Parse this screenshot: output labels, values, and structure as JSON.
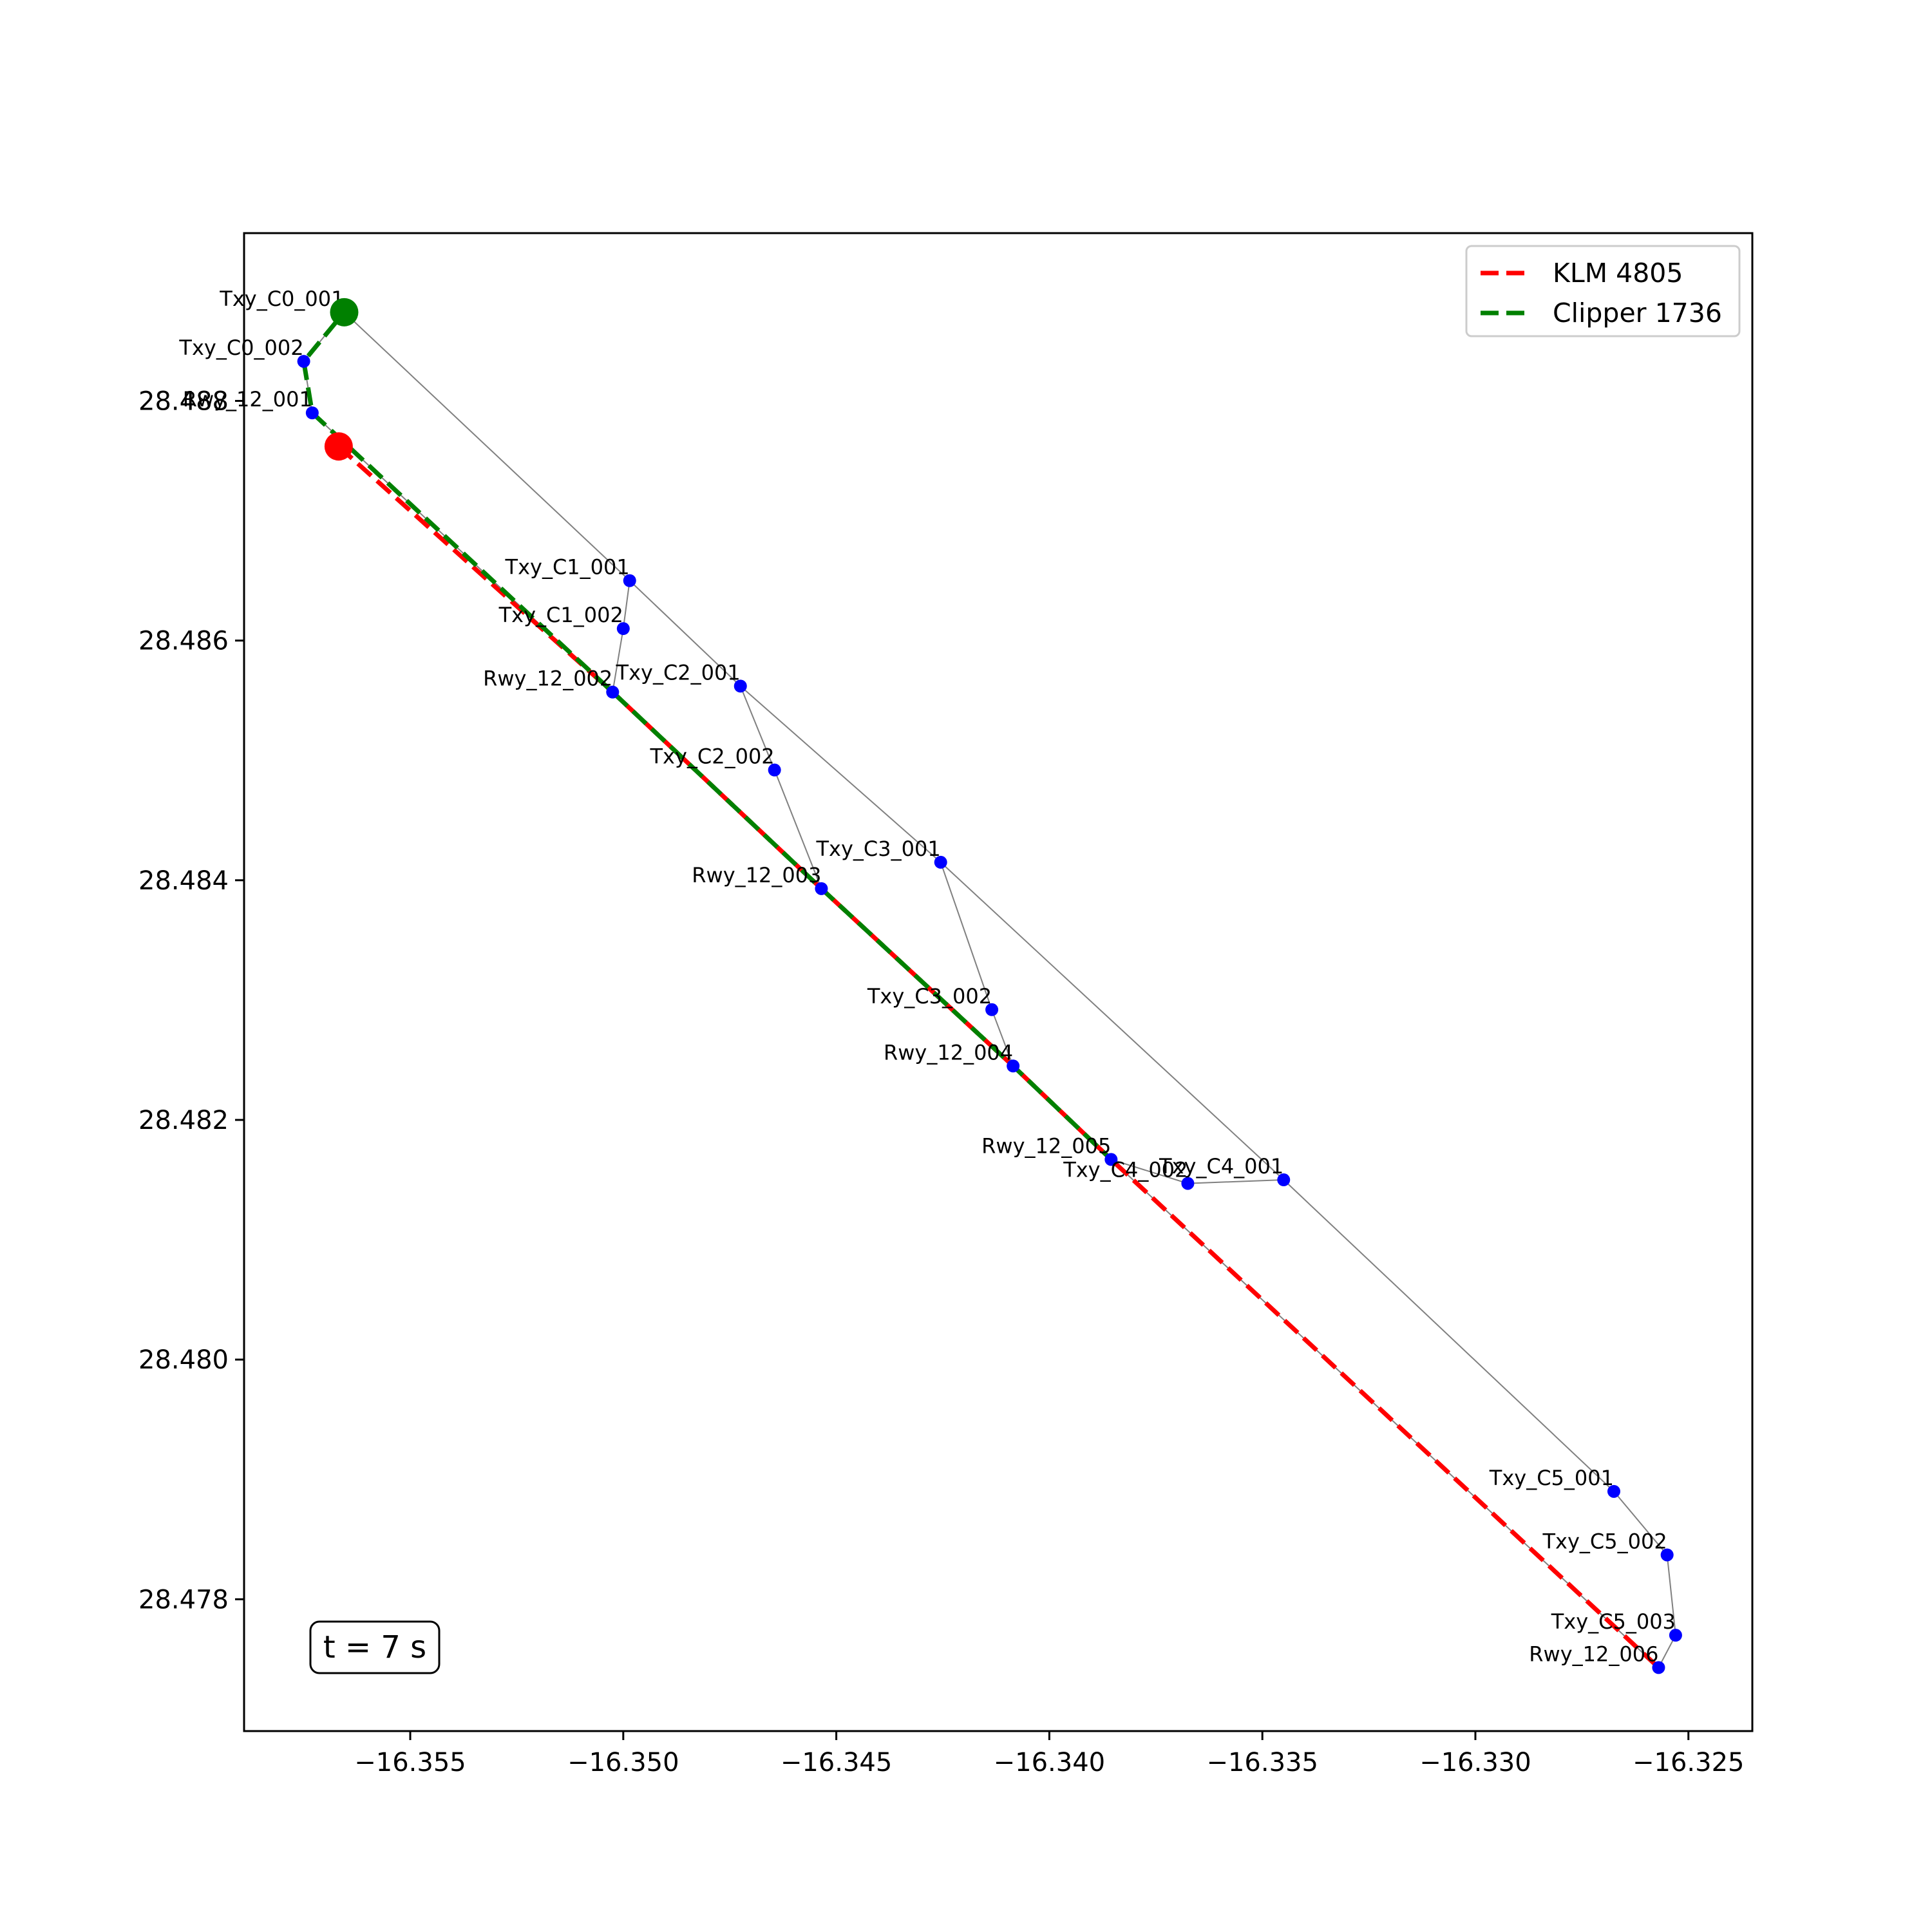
{
  "chart_data": {
    "type": "line",
    "title": "",
    "xlabel": "",
    "ylabel": "",
    "xlim": [
      -16.3589,
      -16.3235
    ],
    "ylim": [
      28.4769,
      28.4894
    ],
    "x_ticks": [
      {
        "value": -16.355,
        "label": "−16.355"
      },
      {
        "value": -16.35,
        "label": "−16.350"
      },
      {
        "value": -16.345,
        "label": "−16.345"
      },
      {
        "value": -16.34,
        "label": "−16.340"
      },
      {
        "value": -16.335,
        "label": "−16.335"
      },
      {
        "value": -16.33,
        "label": "−16.330"
      },
      {
        "value": -16.325,
        "label": "−16.325"
      }
    ],
    "y_ticks": [
      {
        "value": 28.478,
        "label": "28.478"
      },
      {
        "value": 28.48,
        "label": "28.480"
      },
      {
        "value": 28.482,
        "label": "28.482"
      },
      {
        "value": 28.484,
        "label": "28.484"
      },
      {
        "value": 28.486,
        "label": "28.486"
      },
      {
        "value": 28.488,
        "label": "28.488"
      }
    ],
    "nodes": [
      {
        "id": "Txy_C0_001",
        "label": "Txy_C0_001",
        "x": -16.35655,
        "y": 28.48874
      },
      {
        "id": "Txy_C0_002",
        "label": "Txy_C0_002",
        "x": -16.3575,
        "y": 28.48833
      },
      {
        "id": "Rwy_12_001",
        "label": "Rwy_12_001",
        "x": -16.3573,
        "y": 28.4879
      },
      {
        "id": "Txy_C1_001",
        "label": "Txy_C1_001",
        "x": -16.34985,
        "y": 28.4865
      },
      {
        "id": "Txy_C1_002",
        "label": "Txy_C1_002",
        "x": -16.35,
        "y": 28.4861
      },
      {
        "id": "Rwy_12_002",
        "label": "Rwy_12_002",
        "x": -16.35025,
        "y": 28.48557
      },
      {
        "id": "Txy_C2_001",
        "label": "Txy_C2_001",
        "x": -16.34725,
        "y": 28.48562
      },
      {
        "id": "Txy_C2_002",
        "label": "Txy_C2_002",
        "x": -16.34645,
        "y": 28.48492
      },
      {
        "id": "Rwy_12_003",
        "label": "Rwy_12_003",
        "x": -16.34535,
        "y": 28.48393
      },
      {
        "id": "Txy_C3_001",
        "label": "Txy_C3_001",
        "x": -16.34255,
        "y": 28.48415
      },
      {
        "id": "Txy_C3_002",
        "label": "Txy_C3_002",
        "x": -16.34135,
        "y": 28.48292
      },
      {
        "id": "Rwy_12_004",
        "label": "Rwy_12_004",
        "x": -16.34085,
        "y": 28.48245
      },
      {
        "id": "Rwy_12_005",
        "label": "Rwy_12_005",
        "x": -16.33855,
        "y": 28.48167
      },
      {
        "id": "Txy_C4_002",
        "label": "Txy_C4_002",
        "x": -16.33675,
        "y": 28.48147
      },
      {
        "id": "Txy_C4_001",
        "label": "Txy_C4_001",
        "x": -16.3345,
        "y": 28.4815
      },
      {
        "id": "Txy_C5_001",
        "label": "Txy_C5_001",
        "x": -16.32675,
        "y": 28.4789
      },
      {
        "id": "Txy_C5_002",
        "label": "Txy_C5_002",
        "x": -16.3255,
        "y": 28.47837
      },
      {
        "id": "Txy_C5_003",
        "label": "Txy_C5_003",
        "x": -16.3253,
        "y": 28.4777
      },
      {
        "id": "Rwy_12_006",
        "label": "Rwy_12_006",
        "x": -16.3257,
        "y": 28.47743
      }
    ],
    "edges": [
      [
        "Txy_C0_001",
        "Txy_C0_002"
      ],
      [
        "Txy_C0_002",
        "Rwy_12_001"
      ],
      [
        "Txy_C0_001",
        "Txy_C1_001"
      ],
      [
        "Txy_C1_001",
        "Txy_C1_002"
      ],
      [
        "Txy_C1_002",
        "Rwy_12_002"
      ],
      [
        "Txy_C1_001",
        "Txy_C2_001"
      ],
      [
        "Txy_C2_001",
        "Txy_C2_002"
      ],
      [
        "Txy_C2_002",
        "Rwy_12_003"
      ],
      [
        "Txy_C2_001",
        "Txy_C3_001"
      ],
      [
        "Txy_C3_001",
        "Txy_C3_002"
      ],
      [
        "Txy_C3_002",
        "Rwy_12_004"
      ],
      [
        "Txy_C3_001",
        "Txy_C4_001"
      ],
      [
        "Txy_C4_001",
        "Txy_C4_002"
      ],
      [
        "Txy_C4_002",
        "Rwy_12_005"
      ],
      [
        "Txy_C4_001",
        "Txy_C5_001"
      ],
      [
        "Txy_C5_001",
        "Txy_C5_002"
      ],
      [
        "Txy_C5_002",
        "Txy_C5_003"
      ],
      [
        "Txy_C5_003",
        "Rwy_12_006"
      ],
      [
        "Rwy_12_001",
        "Rwy_12_002"
      ],
      [
        "Rwy_12_002",
        "Rwy_12_003"
      ],
      [
        "Rwy_12_003",
        "Rwy_12_004"
      ],
      [
        "Rwy_12_004",
        "Rwy_12_005"
      ],
      [
        "Rwy_12_005",
        "Rwy_12_006"
      ]
    ],
    "series": [
      {
        "name": "KLM 4805",
        "color": "#ff0000",
        "style": "dashed",
        "path": [
          [
            -16.35668,
            28.48762
          ],
          [
            -16.35025,
            28.48557
          ],
          [
            -16.34535,
            28.48393
          ],
          [
            -16.34085,
            28.48245
          ],
          [
            -16.33855,
            28.48167
          ],
          [
            -16.3257,
            28.47743
          ]
        ],
        "current_position": {
          "x": -16.35668,
          "y": 28.48762
        }
      },
      {
        "name": "Clipper 1736",
        "color": "#008000",
        "style": "dashed",
        "path": [
          [
            -16.35655,
            28.48874
          ],
          [
            -16.3575,
            28.48833
          ],
          [
            -16.3573,
            28.4879
          ],
          [
            -16.35025,
            28.48557
          ],
          [
            -16.34535,
            28.48393
          ],
          [
            -16.34085,
            28.48245
          ],
          [
            -16.33855,
            28.48167
          ]
        ],
        "current_position": {
          "x": -16.35655,
          "y": 28.48874
        }
      }
    ],
    "grid": false,
    "legend_position": "top-right",
    "node_color": "#0000ff",
    "edge_color": "#808080",
    "time_label": "t = 7 s"
  }
}
